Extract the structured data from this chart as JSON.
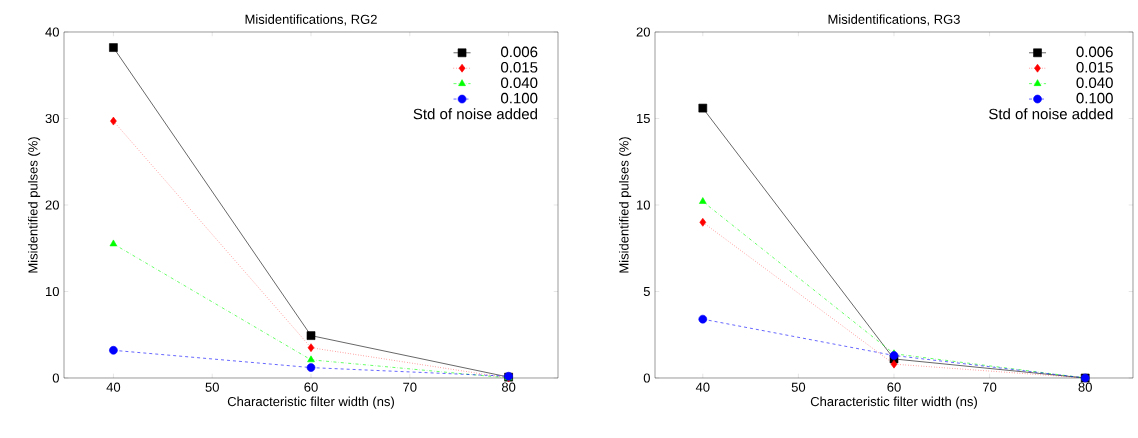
{
  "chart_data": [
    {
      "type": "line",
      "title": "Misidentifications, RG2",
      "xlabel": "Characteristic filter width (ns)",
      "ylabel": "Misidentified pulses (%)",
      "legend_title": "Std of noise added",
      "legend": "top right",
      "grid": false,
      "x": [
        40,
        60,
        80
      ],
      "xlim": [
        35,
        85
      ],
      "xticks": [
        40,
        50,
        60,
        70,
        80
      ],
      "ylim": [
        0,
        40
      ],
      "yticks": [
        0,
        10,
        20,
        30,
        40
      ],
      "series": [
        {
          "name": "0.006",
          "color": "#000000",
          "marker": "square",
          "line_style": "solid",
          "values": [
            38.2,
            4.9,
            0.1
          ]
        },
        {
          "name": "0.015",
          "color": "#ff0000",
          "marker": "diamond",
          "line_style": "dotted",
          "values": [
            29.7,
            3.5,
            0
          ]
        },
        {
          "name": "0.040",
          "color": "#00ff00",
          "marker": "triangle",
          "line_style": "dashdot",
          "values": [
            15.5,
            2.1,
            0
          ]
        },
        {
          "name": "0.100",
          "color": "#0000ff",
          "marker": "circle",
          "line_style": "dashed",
          "values": [
            3.2,
            1.2,
            0.2
          ]
        }
      ]
    },
    {
      "type": "line",
      "title": "Misidentifications, RG3",
      "xlabel": "Characteristic filter width (ns)",
      "ylabel": "Misidentified pulses (%)",
      "legend_title": "Std of noise added",
      "legend": "top right",
      "grid": false,
      "x": [
        40,
        60,
        80
      ],
      "xlim": [
        35,
        85
      ],
      "xticks": [
        40,
        50,
        60,
        70,
        80
      ],
      "ylim": [
        0,
        20
      ],
      "yticks": [
        0,
        5,
        10,
        15,
        20
      ],
      "series": [
        {
          "name": "0.006",
          "color": "#000000",
          "marker": "square",
          "line_style": "solid",
          "values": [
            15.6,
            1.1,
            0
          ]
        },
        {
          "name": "0.015",
          "color": "#ff0000",
          "marker": "diamond",
          "line_style": "dotted",
          "values": [
            9.0,
            0.8,
            0
          ]
        },
        {
          "name": "0.040",
          "color": "#00ff00",
          "marker": "triangle",
          "line_style": "dashdot",
          "values": [
            10.2,
            1.4,
            0
          ]
        },
        {
          "name": "0.100",
          "color": "#0000ff",
          "marker": "circle",
          "line_style": "dashed",
          "values": [
            3.4,
            1.3,
            0
          ]
        }
      ]
    }
  ]
}
